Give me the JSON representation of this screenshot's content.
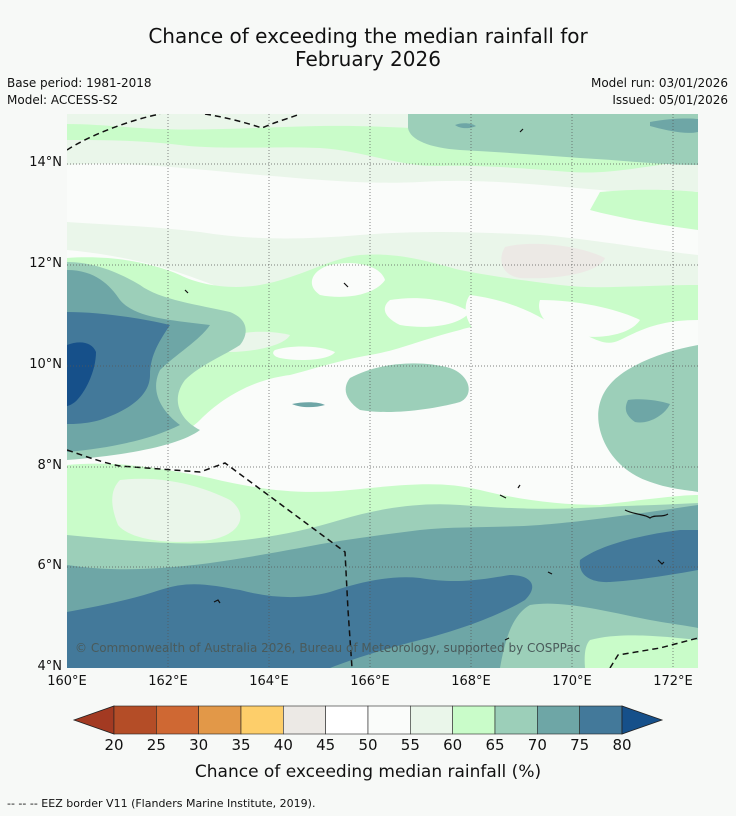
{
  "title": {
    "line1": "Chance of exceeding the median rainfall for",
    "line2": "February 2026"
  },
  "meta": {
    "base_period": "Base period: 1981-2018",
    "model": "Model: ACCESS-S2",
    "model_run": "Model run: 03/01/2026",
    "issued": "Issued: 05/01/2026"
  },
  "map": {
    "lat_labels": [
      "14°N",
      "12°N",
      "10°N",
      "8°N",
      "6°N",
      "4°N"
    ],
    "lat_values": [
      14,
      12,
      10,
      8,
      6,
      4
    ],
    "lon_labels": [
      "160°E",
      "162°E",
      "164°E",
      "166°E",
      "168°E",
      "170°E",
      "172°E"
    ],
    "lon_values": [
      160,
      162,
      164,
      166,
      168,
      170,
      172
    ],
    "lon_range": [
      160,
      172.5
    ],
    "lat_range": [
      4,
      15
    ],
    "copyright": "© Commonwealth of Australia 2026, Bureau of Meteorology, supported by COSPPac"
  },
  "colorbar": {
    "ticks": [
      "20",
      "25",
      "30",
      "35",
      "40",
      "45",
      "50",
      "55",
      "60",
      "65",
      "70",
      "75",
      "80"
    ],
    "colors": [
      "#a33a22",
      "#b44d27",
      "#cf6833",
      "#e29848",
      "#fdce6a",
      "#ece9e5",
      "#ffffff",
      "#fafcfa",
      "#eaf6ea",
      "#c9fcc9",
      "#9ccfb9",
      "#6ea6a6",
      "#43799a",
      "#16508a"
    ],
    "title": "Chance of exceeding median rainfall (%)"
  },
  "footer": {
    "legend": "--  --  -- EEZ border V11 (Flanders Marine Institute, 2019)."
  }
}
